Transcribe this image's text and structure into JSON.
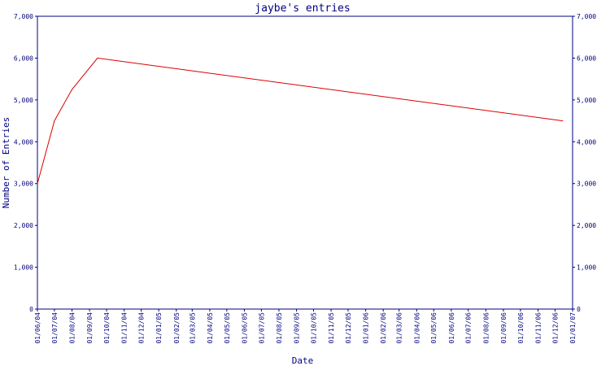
{
  "chart_data": {
    "type": "line",
    "title": "jaybe's entries",
    "xlabel": "Date",
    "ylabel": "Number of Entries",
    "ylim": [
      0,
      7000
    ],
    "y_ticks": [
      0,
      1000,
      2000,
      3000,
      4000,
      5000,
      6000,
      7000
    ],
    "y_tick_labels": [
      "0",
      "1,000",
      "2,000",
      "3,000",
      "4,000",
      "5,000",
      "6,000",
      "7,000"
    ],
    "x_ticks": [
      "01/06/04",
      "01/07/04",
      "01/08/04",
      "01/09/04",
      "01/10/04",
      "01/11/04",
      "01/12/04",
      "01/01/05",
      "01/02/05",
      "01/03/05",
      "01/04/05",
      "01/05/05",
      "01/06/05",
      "01/07/05",
      "01/08/05",
      "01/09/05",
      "01/10/05",
      "01/11/05",
      "01/12/05",
      "01/01/06",
      "01/02/06",
      "01/03/06",
      "01/04/06",
      "01/05/06",
      "01/06/06",
      "01/07/06",
      "01/08/06",
      "01/09/06",
      "01/10/06",
      "01/11/06",
      "01/12/06",
      "01/01/07"
    ],
    "grid": false,
    "legend": "none",
    "series": [
      {
        "color": "#dd0000",
        "x": [
          "2004-06-01",
          "2004-07-01",
          "2004-08-01",
          "2004-09-15",
          "2006-12-15"
        ],
        "y": [
          3000,
          4500,
          5250,
          6000,
          4500
        ]
      }
    ]
  }
}
